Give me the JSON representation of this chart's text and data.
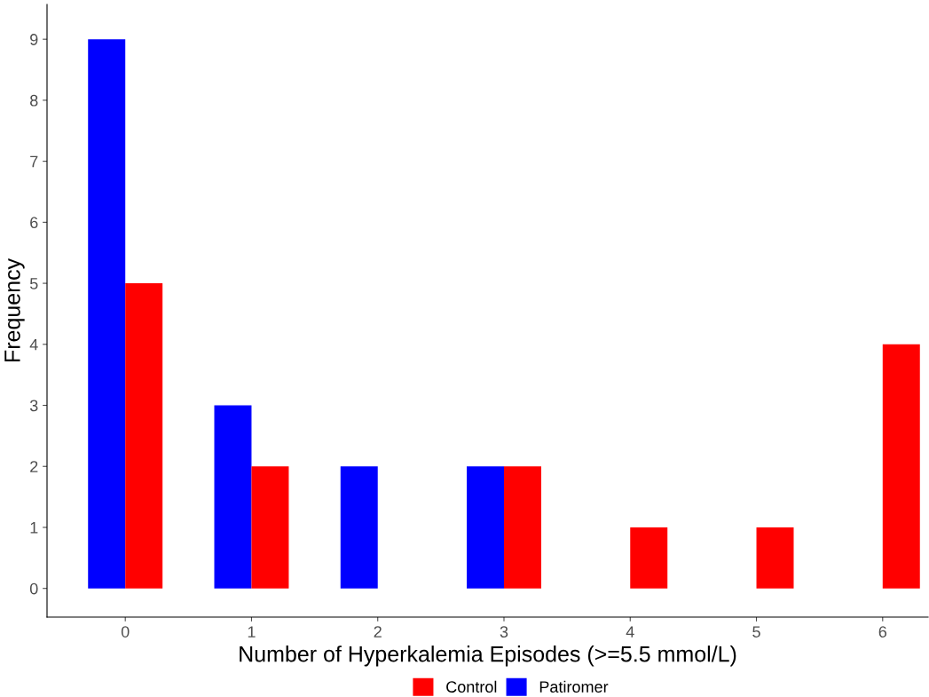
{
  "chart_data": {
    "type": "bar",
    "xlabel": "Number of Hyperkalemia Episodes (>=5.5 mmol/L)",
    "ylabel": "Frequency",
    "categories": [
      "0",
      "1",
      "2",
      "3",
      "4",
      "5",
      "6"
    ],
    "series": [
      {
        "name": "Control",
        "color": "#ff0000",
        "values": [
          5,
          2,
          null,
          2,
          1,
          1,
          4
        ]
      },
      {
        "name": "Patiromer",
        "color": "#0000ff",
        "values": [
          9,
          3,
          2,
          2,
          null,
          null,
          null
        ]
      }
    ],
    "ylim": [
      -0.47,
      9.57
    ],
    "yticks": [
      0,
      1,
      2,
      3,
      4,
      5,
      6,
      7,
      8,
      9
    ],
    "grid": false,
    "legend": "bottom"
  }
}
